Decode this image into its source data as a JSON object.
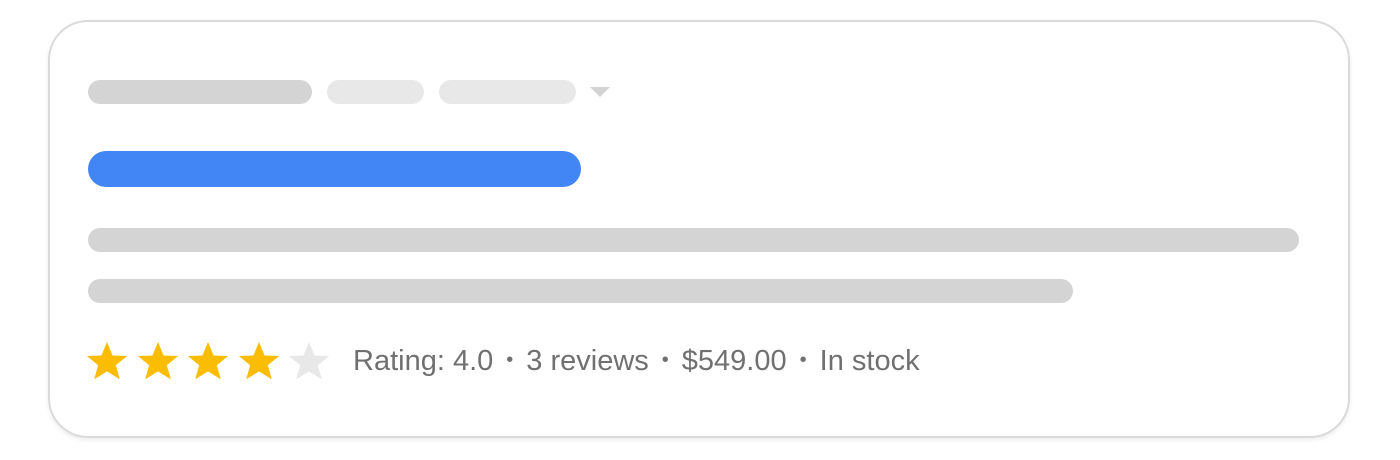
{
  "rating": {
    "value": 4.0,
    "max": 5,
    "filled_color": "#fbbc04",
    "empty_color": "#e8e8e8"
  },
  "meta": {
    "rating_text": "Rating: 4.0",
    "reviews": "3 reviews",
    "price": "$549.00",
    "availability": "In stock",
    "separator": "•"
  },
  "colors": {
    "title_placeholder": "#4285f4",
    "placeholder": "#d3d4d3",
    "placeholder_light": "#e8e8e8"
  }
}
